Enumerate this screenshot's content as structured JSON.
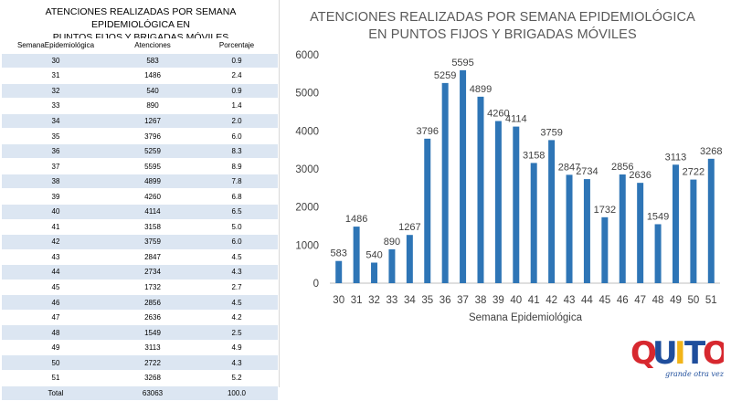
{
  "table": {
    "title_line1": "ATENCIONES REALIZADAS POR SEMANA EPIDEMIOLÓGICA  EN",
    "title_line2": "PUNTOS FIJOS Y BRIGADAS MÓVILES",
    "headers": [
      "SemanaEpidemiológica",
      "Atenciones",
      "Porcentaje"
    ],
    "rows": [
      [
        "30",
        "583",
        "0.9"
      ],
      [
        "31",
        "1486",
        "2.4"
      ],
      [
        "32",
        "540",
        "0.9"
      ],
      [
        "33",
        "890",
        "1.4"
      ],
      [
        "34",
        "1267",
        "2.0"
      ],
      [
        "35",
        "3796",
        "6.0"
      ],
      [
        "36",
        "5259",
        "8.3"
      ],
      [
        "37",
        "5595",
        "8.9"
      ],
      [
        "38",
        "4899",
        "7.8"
      ],
      [
        "39",
        "4260",
        "6.8"
      ],
      [
        "40",
        "4114",
        "6.5"
      ],
      [
        "41",
        "3158",
        "5.0"
      ],
      [
        "42",
        "3759",
        "6.0"
      ],
      [
        "43",
        "2847",
        "4.5"
      ],
      [
        "44",
        "2734",
        "4.3"
      ],
      [
        "45",
        "1732",
        "2.7"
      ],
      [
        "46",
        "2856",
        "4.5"
      ],
      [
        "47",
        "2636",
        "4.2"
      ],
      [
        "48",
        "1549",
        "2.5"
      ],
      [
        "49",
        "3113",
        "4.9"
      ],
      [
        "50",
        "2722",
        "4.3"
      ],
      [
        "51",
        "3268",
        "5.2"
      ]
    ],
    "total": [
      "Total",
      "63063",
      "100.0"
    ]
  },
  "chart_data": {
    "type": "bar",
    "title_line1": "ATENCIONES REALIZADAS POR SEMANA EPIDEMIOLÓGICA",
    "title_line2": "EN PUNTOS FIJOS Y BRIGADAS MÓVILES",
    "categories": [
      "30",
      "31",
      "32",
      "33",
      "34",
      "35",
      "36",
      "37",
      "38",
      "39",
      "40",
      "41",
      "42",
      "43",
      "44",
      "45",
      "46",
      "47",
      "48",
      "49",
      "50",
      "51"
    ],
    "values": [
      583,
      1486,
      540,
      890,
      1267,
      3796,
      5259,
      5595,
      4899,
      4260,
      4114,
      3158,
      3759,
      2847,
      2734,
      1732,
      2856,
      2636,
      1549,
      3113,
      2722,
      3268
    ],
    "xlabel": "Semana Epidemiológica",
    "ylabel": "",
    "ylim": [
      0,
      6000
    ],
    "yticks": [
      0,
      1000,
      2000,
      3000,
      4000,
      5000,
      6000
    ],
    "grid": false,
    "bar_color": "#2e75b6"
  },
  "logo": {
    "text": "QUITO",
    "tagline": "grande otra vez",
    "colors": {
      "q": "#d7282f",
      "u": "#1f4e9c",
      "i": "#f2b418",
      "t": "#1f4e9c",
      "o": "#d7282f"
    }
  }
}
